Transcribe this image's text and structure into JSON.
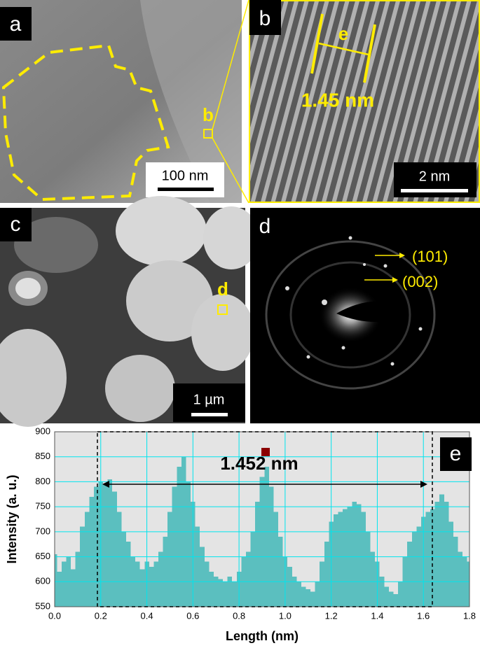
{
  "panels": [
    {
      "label": "a",
      "scale_bar": "100 nm",
      "marker": "b"
    },
    {
      "label": "b",
      "scale_bar": "2 nm",
      "marker": "e",
      "measurement": "1.45 nm"
    },
    {
      "label": "c",
      "scale_bar": "1 µm",
      "marker": "d"
    },
    {
      "label": "d",
      "rings": [
        "(101)",
        "(002)"
      ]
    }
  ],
  "chart_data": {
    "type": "bar",
    "panel_label": "e",
    "annotation": "1.452 nm",
    "x_label": "Length (nm)",
    "y_label": "Intensity (a. u.)",
    "color": "#5bbfbf",
    "grid": true,
    "xlim": [
      0,
      1.8
    ],
    "ylim": [
      550,
      900
    ],
    "xticks": [
      {
        "value": 0,
        "label": "0.0"
      },
      0.2,
      0.4,
      0.6,
      0.8,
      {
        "value": 1,
        "label": "1.0"
      },
      1.2,
      1.4,
      1.6,
      1.8
    ],
    "yticks": [
      550,
      600,
      650,
      700,
      750,
      800,
      850,
      900
    ],
    "x": [
      0,
      0.02,
      0.04,
      0.06,
      0.08,
      0.1,
      0.12,
      0.14,
      0.16,
      0.18,
      0.2,
      0.22,
      0.24,
      0.26,
      0.28,
      0.3,
      0.32,
      0.34,
      0.36,
      0.38,
      0.4,
      0.42,
      0.44,
      0.46,
      0.48,
      0.5,
      0.52,
      0.54,
      0.56,
      0.58,
      0.6,
      0.62,
      0.64,
      0.66,
      0.68,
      0.7,
      0.72,
      0.74,
      0.76,
      0.78,
      0.8,
      0.82,
      0.84,
      0.86,
      0.88,
      0.9,
      0.92,
      0.94,
      0.96,
      0.98,
      1,
      1.02,
      1.04,
      1.06,
      1.08,
      1.1,
      1.12,
      1.14,
      1.16,
      1.18,
      1.2,
      1.22,
      1.24,
      1.26,
      1.28,
      1.3,
      1.32,
      1.34,
      1.36,
      1.38,
      1.4,
      1.42,
      1.44,
      1.46,
      1.48,
      1.5,
      1.52,
      1.54,
      1.56,
      1.58,
      1.6,
      1.62,
      1.64,
      1.66,
      1.68,
      1.7,
      1.72,
      1.74,
      1.76,
      1.78,
      1.8
    ],
    "values": [
      655,
      620,
      640,
      650,
      625,
      660,
      710,
      740,
      770,
      790,
      800,
      795,
      805,
      780,
      740,
      700,
      680,
      650,
      640,
      625,
      640,
      630,
      640,
      660,
      690,
      740,
      790,
      830,
      850,
      800,
      760,
      710,
      670,
      640,
      620,
      610,
      605,
      600,
      610,
      600,
      620,
      650,
      660,
      700,
      760,
      810,
      830,
      790,
      740,
      690,
      650,
      630,
      610,
      600,
      590,
      585,
      580,
      600,
      640,
      680,
      720,
      735,
      740,
      745,
      750,
      760,
      755,
      740,
      700,
      660,
      640,
      610,
      590,
      580,
      575,
      600,
      650,
      680,
      700,
      710,
      730,
      740,
      745,
      760,
      775,
      760,
      720,
      690,
      660,
      650,
      640
    ]
  }
}
